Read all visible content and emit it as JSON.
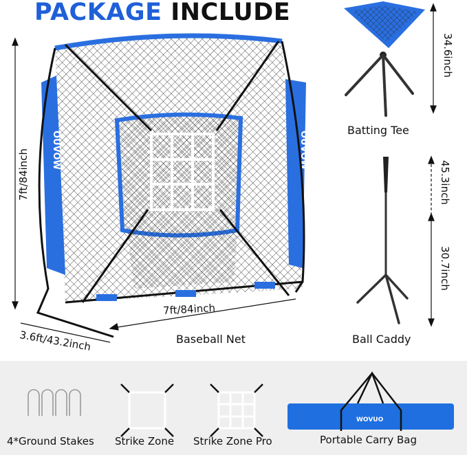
{
  "title": {
    "part1": "PACKAGE",
    "part2": "INCLUDE"
  },
  "colors": {
    "accent": "#1f5fd8",
    "net_blue": "#2a6fe0",
    "bottom_bg": "#efefef"
  },
  "brand_logo": "WOVUO",
  "net": {
    "label": "Baseball Net",
    "height": "7ft/84inch",
    "width": "7ft/84inch",
    "depth": "3.6ft/43.2inch"
  },
  "batting_tee": {
    "label": "Batting Tee",
    "height": "34.6inch"
  },
  "ball_caddy": {
    "label": "Ball Caddy",
    "max_height": "45.3inch",
    "min_height": "30.7inch"
  },
  "accessories": [
    {
      "label": "4*Ground Stakes",
      "icon": "ground-stakes-icon"
    },
    {
      "label": "Strike Zone",
      "icon": "strike-zone-icon"
    },
    {
      "label": "Strike Zone Pro",
      "icon": "strike-zone-pro-icon"
    },
    {
      "label": "Portable Carry Bag",
      "icon": "carry-bag-icon"
    }
  ]
}
